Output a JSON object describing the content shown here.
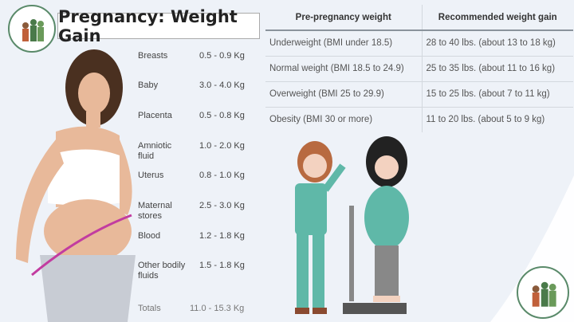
{
  "title": "Pregnancy: Weight Gain",
  "components": [
    {
      "label": "Breasts",
      "value": "0.5 - 0.9 Kg"
    },
    {
      "label": "Baby",
      "value": "3.0 - 4.0 Kg"
    },
    {
      "label": "Placenta",
      "value": "0.5 - 0.8 Kg"
    },
    {
      "label": "Amniotic fluid",
      "value": "1.0 - 2.0 Kg"
    },
    {
      "label": "Uterus",
      "value": "0.8 - 1.0 Kg"
    },
    {
      "label": "Maternal stores",
      "value": "2.5 - 3.0 Kg"
    },
    {
      "label": "Blood",
      "value": "1.2 - 1.8 Kg"
    },
    {
      "label": "Other bodily fluids",
      "value": "1.5 - 1.8 Kg"
    }
  ],
  "totals": {
    "label": "Totals",
    "value": "11.0 - 15.3 Kg"
  },
  "table": {
    "headers": [
      "Pre-pregnancy weight",
      "Recommended weight gain"
    ],
    "rows": [
      [
        "Underweight (BMI under 18.5)",
        "28 to 40 lbs. (about 13 to 18 kg)"
      ],
      [
        "Normal weight (BMI 18.5 to 24.9)",
        "25 to 35 lbs. (about 11 to 16 kg)"
      ],
      [
        "Overweight (BMI 25 to 29.9)",
        "15 to 25 lbs. (about 7 to 11 kg)"
      ],
      [
        "Obesity (BMI 30 or more)",
        "11 to 20 lbs. (about 5 to 9 kg)"
      ]
    ]
  }
}
